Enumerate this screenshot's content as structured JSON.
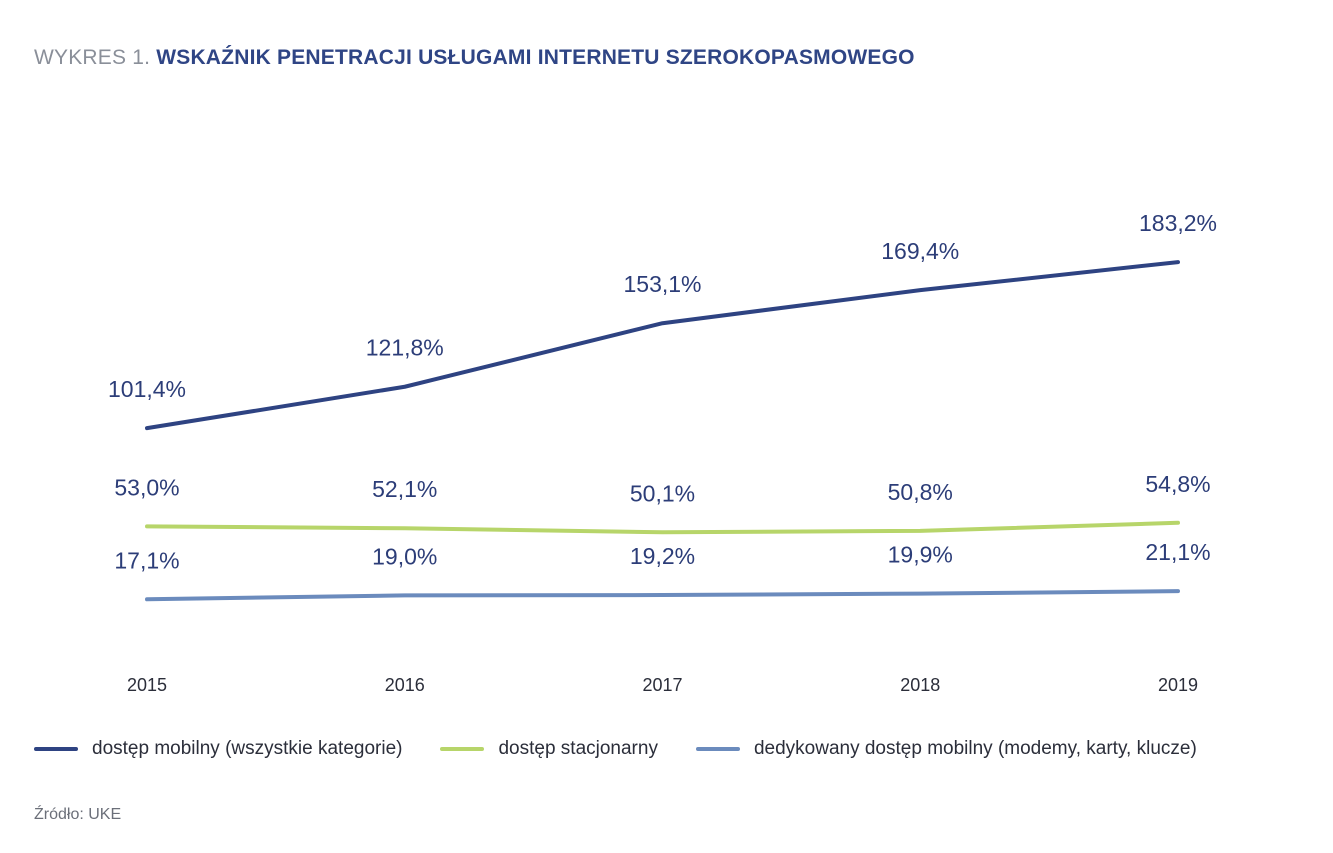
{
  "header": {
    "prefix": "WYKRES 1.",
    "title": "WSKAŹNIK PENETRACJI USŁUGAMI INTERNETU SZEROKOPASMOWEGO"
  },
  "chart_data": {
    "type": "line",
    "x": [
      "2015",
      "2016",
      "2017",
      "2018",
      "2019"
    ],
    "series": [
      {
        "name": "dostęp mobilny (wszystkie kategorie)",
        "color": "#2e4382",
        "values": [
          101.4,
          121.8,
          153.1,
          169.4,
          183.2
        ],
        "labels": [
          "101,4%",
          "121,8%",
          "153,1%",
          "169,4%",
          "183,2%"
        ]
      },
      {
        "name": "dostęp stacjonarny",
        "color": "#b7d56a",
        "values": [
          53.0,
          52.1,
          50.1,
          50.8,
          54.8
        ],
        "labels": [
          "53,0%",
          "52,1%",
          "50,1%",
          "50,8%",
          "54,8%"
        ]
      },
      {
        "name": "dedykowany dostęp mobilny (modemy, karty, klucze)",
        "color": "#6b8bbd",
        "values": [
          17.1,
          19.0,
          19.2,
          19.9,
          21.1
        ],
        "labels": [
          "17,1%",
          "19,0%",
          "19,2%",
          "19,9%",
          "21,1%"
        ]
      }
    ],
    "grid": false,
    "legend": "bottom"
  },
  "footer": {
    "source": "Źródło: UKE"
  }
}
